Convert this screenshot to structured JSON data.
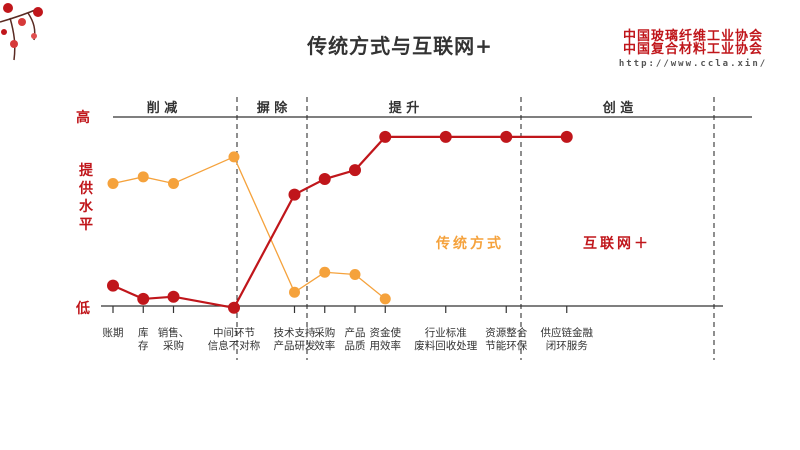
{
  "title": "传统方式与互联网+",
  "organization": {
    "line1": "中国玻璃纤维工业协会",
    "line2": "中国复合材料工业协会",
    "url": "http://www.ccla.xin/"
  },
  "colors": {
    "traditional": "#f5a23c",
    "internet": "#c0161b",
    "text": "#333333",
    "axis": "#333333"
  },
  "chart_data": {
    "type": "line",
    "ylabel": "提供水平",
    "y_high_label": "高",
    "y_low_label": "低",
    "phases": [
      "削 减",
      "摒 除",
      "提 升",
      "创 造"
    ],
    "categories": [
      "账期",
      "库\n存",
      "销售、\n采购",
      "中间环节\n信息不对称",
      "技术支持\n产品研发",
      "采购\n效率",
      "产品\n品质",
      "资金使\n用效率",
      "行业标准\n废料回收处理",
      "资源整合\n节能环保",
      "供应链金融\n闭环服务"
    ],
    "ylim": [
      0,
      10
    ],
    "grid": false,
    "series": [
      {
        "name": "传统方式",
        "x": [
          0,
          0.5,
          1,
          2,
          3,
          3.5,
          4,
          4.5
        ],
        "values": [
          6.6,
          6.9,
          6.6,
          7.8,
          1.7,
          2.6,
          2.5,
          1.4
        ]
      },
      {
        "name": "互联网＋",
        "x": [
          0,
          0.5,
          1,
          2,
          3,
          3.5,
          4,
          4.5,
          5.5,
          6.5,
          7.5
        ],
        "values": [
          2.0,
          1.4,
          1.5,
          1.0,
          6.1,
          6.8,
          7.2,
          8.7,
          8.7,
          8.7,
          8.7
        ]
      }
    ]
  }
}
